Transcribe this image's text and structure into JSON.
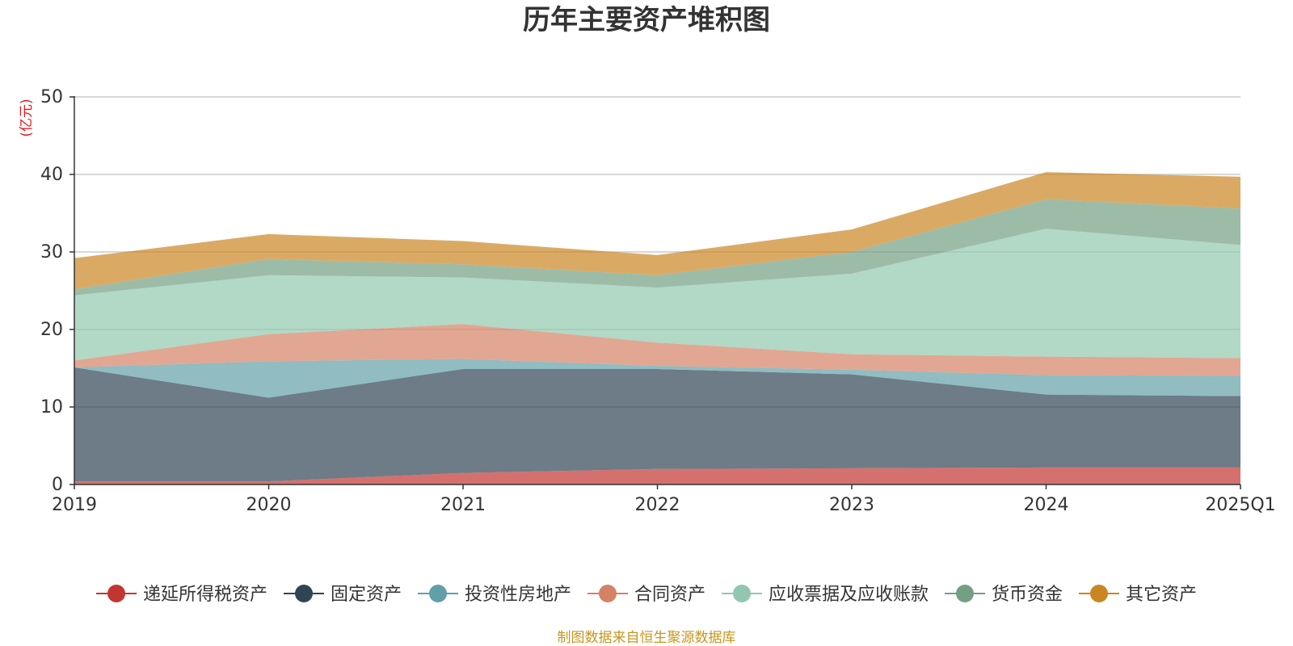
{
  "chart_data": {
    "type": "area",
    "stacked": true,
    "title": "历年主要资产堆积图",
    "unit_label": "(亿元)",
    "x": [
      "2019",
      "2020",
      "2021",
      "2022",
      "2023",
      "2024",
      "2025Q1"
    ],
    "ylim": [
      0,
      50
    ],
    "yticks": [
      "0",
      "10",
      "20",
      "30",
      "40",
      "50"
    ],
    "grid": true,
    "legend_position": "bottom",
    "series": [
      {
        "name": "递延所得税资产",
        "color": "#c23531",
        "values": [
          0.4,
          0.4,
          1.5,
          2.0,
          2.1,
          2.2,
          2.2
        ]
      },
      {
        "name": "固定资产",
        "color": "#2f4554",
        "values": [
          14.7,
          10.8,
          13.4,
          12.9,
          12.1,
          9.4,
          9.2
        ]
      },
      {
        "name": "投资性房地产",
        "color": "#61a0a8",
        "values": [
          0.0,
          4.7,
          1.3,
          0.4,
          0.6,
          2.5,
          2.6
        ]
      },
      {
        "name": "合同资产",
        "color": "#d48265",
        "values": [
          0.9,
          3.5,
          4.5,
          3.0,
          2.0,
          2.4,
          2.3
        ]
      },
      {
        "name": "应收票据及应收账款",
        "color": "#91c7ae",
        "values": [
          8.4,
          7.6,
          6.0,
          7.1,
          10.4,
          16.5,
          14.6
        ]
      },
      {
        "name": "货币资金",
        "color": "#749f83",
        "values": [
          0.8,
          2.1,
          1.7,
          1.6,
          2.8,
          3.8,
          4.7
        ]
      },
      {
        "name": "其它资产",
        "color": "#ca8622",
        "values": [
          4.0,
          3.2,
          3.0,
          2.6,
          2.9,
          3.5,
          4.1
        ]
      }
    ],
    "source_note": "制图数据来自恒生聚源数据库"
  }
}
